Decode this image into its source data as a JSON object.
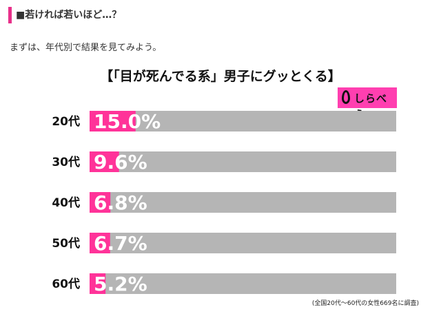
{
  "heading": "■若ければ若いほど…？",
  "intro": "まずは、年代別で結果を見てみよう。",
  "logo": {
    "text": "しらべぇ"
  },
  "colors": {
    "accent": "#e8308a",
    "bar_fill": "#ff3399",
    "bar_track": "#b5b5b5",
    "value_text": "#ffffff"
  },
  "chart_data": {
    "type": "bar",
    "orientation": "horizontal",
    "title": "【「目が死んでる系」男子にグッとくる】",
    "categories": [
      "20代",
      "30代",
      "40代",
      "50代",
      "60代"
    ],
    "values": [
      15.0,
      9.6,
      6.8,
      6.7,
      5.2
    ],
    "value_labels": [
      "15.0%",
      "9.6%",
      "6.8%",
      "6.7%",
      "5.2%"
    ],
    "xlim": [
      0,
      100
    ],
    "grid": false,
    "legend": "none",
    "note": "(全国20代〜60代の女性669名に調査)"
  }
}
